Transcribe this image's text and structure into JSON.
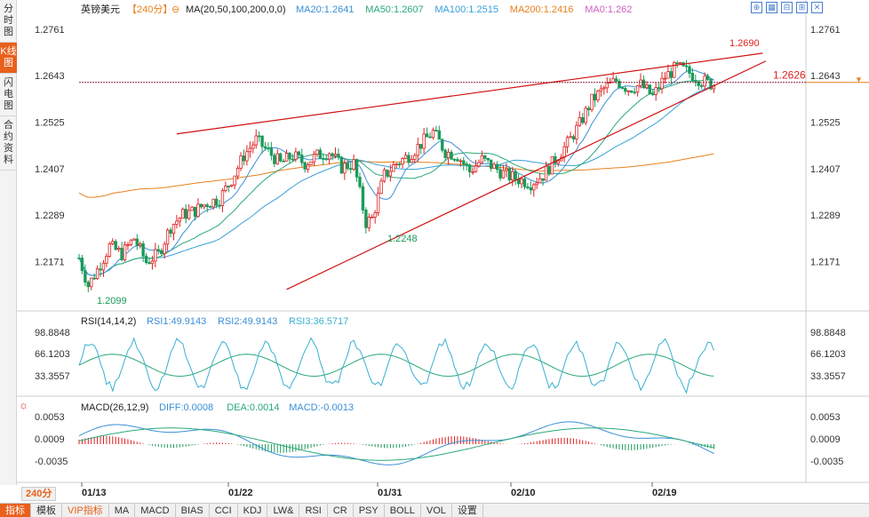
{
  "sidebar": [
    {
      "label": "分时图",
      "active": false
    },
    {
      "label": "K线图",
      "active": true
    },
    {
      "label": "闪电图",
      "active": false
    },
    {
      "label": "合约资料",
      "active": false
    }
  ],
  "header": {
    "symbol": "英镑美元",
    "period": "【240分】",
    "ma_spec": "MA(20,50,100,200,0,0)",
    "ma_values": [
      {
        "label": "MA20:1.2641",
        "color": "#3a8fd8"
      },
      {
        "label": "MA50:1.2607",
        "color": "#2aa87a"
      },
      {
        "label": "MA100:1.2515",
        "color": "#38a0d8"
      },
      {
        "label": "MA200:1.2416",
        "color": "#e8801c"
      },
      {
        "label": "MA0:1.262",
        "color": "#d060c0"
      }
    ]
  },
  "tools": [
    "⊕",
    "▦",
    "⊟",
    "⊞",
    "✕"
  ],
  "price_axis": {
    "ticks": [
      "1.2761",
      "1.2643",
      "1.2525",
      "1.2407",
      "1.2289",
      "1.2171"
    ],
    "tick_values": [
      1.2761,
      1.2643,
      1.2525,
      1.2407,
      1.2289,
      1.2171
    ],
    "current_price": "1.2626",
    "current_value": 1.2626
  },
  "annotations": {
    "high": "1.2690",
    "mid_low": "1.2248",
    "low": "1.2099"
  },
  "rsi": {
    "title": "RSI(14,14,2)",
    "values": [
      {
        "label": "RSI1:49.9143",
        "color": "#3a8fd8"
      },
      {
        "label": "RSI2:49.9143",
        "color": "#3a8fd8"
      },
      {
        "label": "RSI3:36.5717",
        "color": "#38b0d0"
      }
    ],
    "ticks": [
      "98.8848",
      "66.1203",
      "33.3557"
    ]
  },
  "macd": {
    "title": "MACD(26,12,9)",
    "values": [
      {
        "label": "DIFF:0.0008",
        "color": "#3a8fd8"
      },
      {
        "label": "DEA:0.0014",
        "color": "#2aa87a"
      },
      {
        "label": "MACD:-0.0013",
        "color": "#3a8fd8"
      }
    ],
    "ticks": [
      "0.0053",
      "0.0009",
      "-0.0035"
    ]
  },
  "x_axis": {
    "period_label": "240分",
    "dates": [
      "01/13",
      "01/22",
      "01/31",
      "02/10",
      "02/19"
    ]
  },
  "bottom_tabs": [
    {
      "label": "指标",
      "active": true,
      "vip": false
    },
    {
      "label": "模板",
      "active": false,
      "vip": false
    },
    {
      "label": "VIP指标",
      "active": false,
      "vip": true
    },
    {
      "label": "MA",
      "active": false,
      "vip": false
    },
    {
      "label": "MACD",
      "active": false,
      "vip": false
    },
    {
      "label": "BIAS",
      "active": false,
      "vip": false
    },
    {
      "label": "CCI",
      "active": false,
      "vip": false
    },
    {
      "label": "KDJ",
      "active": false,
      "vip": false
    },
    {
      "label": "LW&",
      "active": false,
      "vip": false
    },
    {
      "label": "RSI",
      "active": false,
      "vip": false
    },
    {
      "label": "CR",
      "active": false,
      "vip": false
    },
    {
      "label": "PSY",
      "active": false,
      "vip": false
    },
    {
      "label": "BOLL",
      "active": false,
      "vip": false
    },
    {
      "label": "VOL",
      "active": false,
      "vip": false
    },
    {
      "label": "设置",
      "active": false,
      "vip": false
    }
  ],
  "chart_data": {
    "type": "candlestick",
    "series_note": "GBP/USD 240-minute candles, approximate",
    "price_range": [
      1.205,
      1.279
    ],
    "anchors": [
      [
        0,
        1.218
      ],
      [
        3,
        1.211
      ],
      [
        6,
        1.215
      ],
      [
        10,
        1.221
      ],
      [
        14,
        1.219
      ],
      [
        18,
        1.223
      ],
      [
        22,
        1.217
      ],
      [
        26,
        1.219
      ],
      [
        30,
        1.226
      ],
      [
        34,
        1.229
      ],
      [
        38,
        1.23
      ],
      [
        42,
        1.232
      ],
      [
        46,
        1.233
      ],
      [
        50,
        1.238
      ],
      [
        54,
        1.244
      ],
      [
        58,
        1.248
      ],
      [
        62,
        1.245
      ],
      [
        66,
        1.242
      ],
      [
        70,
        1.244
      ],
      [
        74,
        1.242
      ],
      [
        78,
        1.244
      ],
      [
        82,
        1.245
      ],
      [
        86,
        1.241
      ],
      [
        90,
        1.242
      ],
      [
        94,
        1.227
      ],
      [
        96,
        1.228
      ],
      [
        100,
        1.239
      ],
      [
        104,
        1.242
      ],
      [
        108,
        1.244
      ],
      [
        112,
        1.247
      ],
      [
        116,
        1.25
      ],
      [
        120,
        1.245
      ],
      [
        124,
        1.244
      ],
      [
        128,
        1.24
      ],
      [
        132,
        1.243
      ],
      [
        136,
        1.241
      ],
      [
        140,
        1.239
      ],
      [
        144,
        1.238
      ],
      [
        148,
        1.237
      ],
      [
        152,
        1.239
      ],
      [
        156,
        1.243
      ],
      [
        160,
        1.247
      ],
      [
        164,
        1.252
      ],
      [
        168,
        1.258
      ],
      [
        172,
        1.261
      ],
      [
        176,
        1.263
      ],
      [
        180,
        1.261
      ],
      [
        184,
        1.262
      ],
      [
        188,
        1.259
      ],
      [
        192,
        1.264
      ],
      [
        196,
        1.2665
      ],
      [
        200,
        1.265
      ],
      [
        204,
        1.263
      ],
      [
        208,
        1.262
      ]
    ],
    "trendlines": [
      {
        "from": [
          32,
          1.2495
        ],
        "to": [
          224,
          1.27
        ],
        "color": "#d01010"
      },
      {
        "from": [
          68,
          1.21
        ],
        "to": [
          225,
          1.268
        ],
        "color": "#d01010"
      }
    ]
  }
}
